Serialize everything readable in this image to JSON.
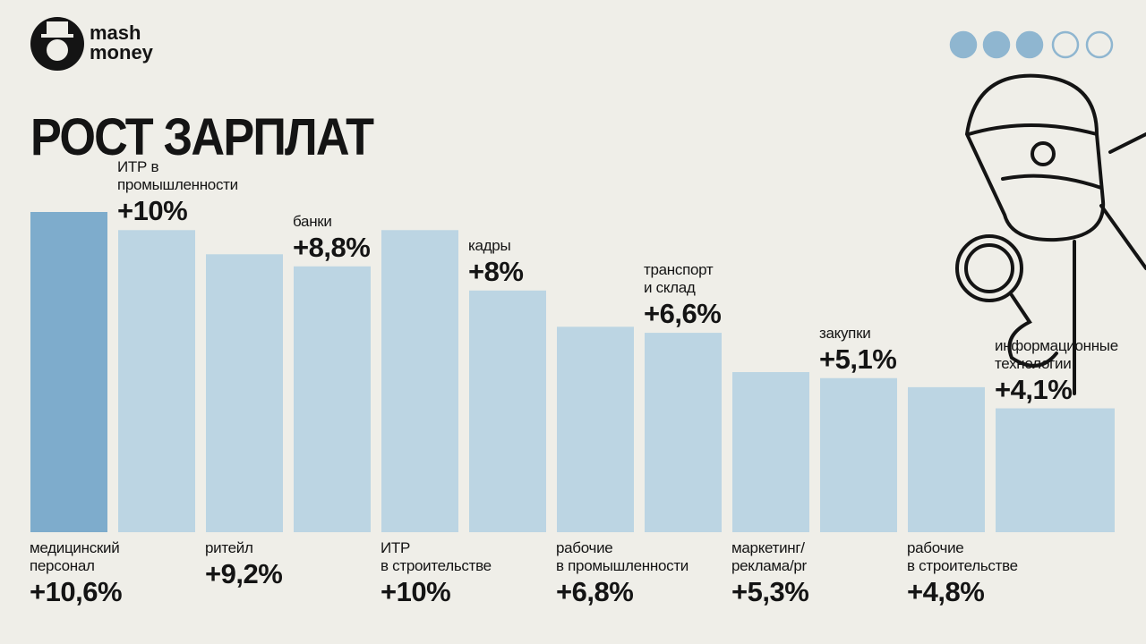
{
  "logo": "mash\nmoney",
  "chart_data": {
    "type": "bar",
    "title": "РОСТ ЗАРПЛАТ",
    "categories": [
      "медицинский\nперсонал",
      "ИТР в промышленности",
      "ритейл",
      "банки",
      "ИТР\nв строительстве",
      "кадры",
      "рабочие\nв промышленности",
      "транспорт\nи склад",
      "маркетинг/\nреклама/pr",
      "закупки",
      "рабочие\nв строительстве",
      "информационные\nтехнологии"
    ],
    "values": [
      10.6,
      10,
      9.2,
      8.8,
      10,
      8,
      6.8,
      6.6,
      5.3,
      5.1,
      4.8,
      4.1
    ],
    "value_labels": [
      "+10,6%",
      "+10%",
      "+9,2%",
      "+8,8%",
      "+10%",
      "+8%",
      "+6,8%",
      "+6,6%",
      "+5,3%",
      "+5,1%",
      "+4,8%",
      "+4,1%"
    ],
    "colors": [
      "#7eaccc",
      "#bcd5e3",
      "#bcd5e3",
      "#bcd5e3",
      "#bcd5e3",
      "#bcd5e3",
      "#bcd5e3",
      "#bcd5e3",
      "#bcd5e3",
      "#bcd5e3",
      "#bcd5e3",
      "#bcd5e3"
    ]
  }
}
